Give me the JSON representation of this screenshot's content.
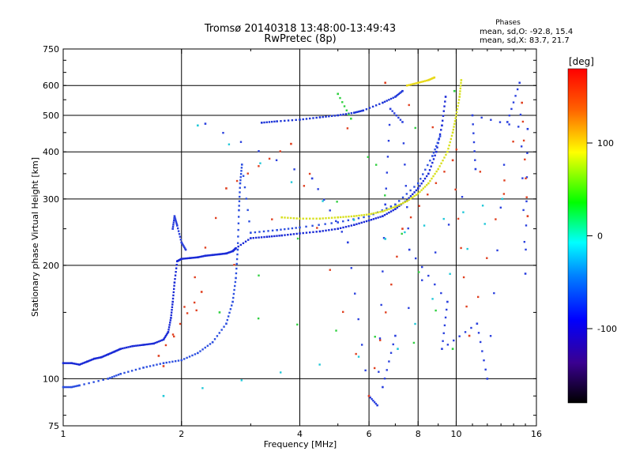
{
  "chart_data": {
    "type": "scatter",
    "title": "Tromsø 20140318 13:48:00-13:49:43",
    "subtitle": "RwPretec (8p)",
    "xlabel": "Frequency [MHz]",
    "ylabel": "Stationary phase Virtual Height [km]",
    "x_scale": "log",
    "y_scale": "log",
    "xlim": [
      1,
      16
    ],
    "ylim": [
      75,
      750
    ],
    "x_ticks": [
      1,
      2,
      4,
      6,
      8,
      10,
      16
    ],
    "y_ticks": [
      75,
      100,
      200,
      300,
      400,
      500,
      600,
      750
    ],
    "x_gridlines": [
      2,
      4,
      6,
      8,
      10
    ],
    "y_gridlines": [
      100,
      200,
      300,
      400,
      500,
      600
    ],
    "grid": true,
    "stats": {
      "heading": "Phases",
      "line1": "mean, sd,O: -92.8, 15.4",
      "line2": "mean, sd,X: 83.7, 21.7"
    },
    "colorbar": {
      "label": "[deg]",
      "ticks": [
        100,
        0,
        -100
      ],
      "range": [
        -180,
        180
      ],
      "colors": [
        "#ff0000",
        "#ff8000",
        "#ffff00",
        "#00ff00",
        "#00ffff",
        "#0000ff",
        "#4000a0",
        "#000000"
      ]
    },
    "series": [
      {
        "color": "#1a2ad6",
        "points": [
          [
            1.0,
            110
          ],
          [
            1.05,
            110
          ],
          [
            1.1,
            109
          ],
          [
            1.15,
            111
          ],
          [
            1.2,
            113
          ],
          [
            1.25,
            114
          ],
          [
            1.3,
            116
          ],
          [
            1.35,
            118
          ],
          [
            1.4,
            120
          ],
          [
            1.5,
            122
          ],
          [
            1.6,
            123
          ],
          [
            1.7,
            124
          ],
          [
            1.8,
            127
          ],
          [
            1.85,
            133
          ],
          [
            1.88,
            145
          ],
          [
            1.9,
            160
          ],
          [
            1.92,
            180
          ],
          [
            1.95,
            205
          ],
          [
            2.0,
            208
          ],
          [
            2.1,
            209
          ],
          [
            2.2,
            210
          ],
          [
            2.3,
            212
          ],
          [
            2.4,
            213
          ],
          [
            2.5,
            214
          ],
          [
            2.6,
            215
          ],
          [
            2.7,
            218
          ],
          [
            2.75,
            222
          ],
          [
            3.0,
            236
          ],
          [
            3.3,
            238
          ],
          [
            3.6,
            240
          ],
          [
            4.0,
            243
          ],
          [
            4.5,
            246
          ],
          [
            5.0,
            250
          ],
          [
            5.5,
            256
          ],
          [
            6.0,
            263
          ],
          [
            6.5,
            270
          ],
          [
            7.0,
            282
          ],
          [
            7.5,
            298
          ],
          [
            8.0,
            320
          ],
          [
            8.5,
            350
          ],
          [
            8.9,
            400
          ],
          [
            9.2,
            470
          ],
          [
            9.4,
            560
          ]
        ]
      },
      {
        "color": "#2c4fe0",
        "points": [
          [
            1.0,
            95
          ],
          [
            1.05,
            95
          ],
          [
            1.1,
            96
          ],
          [
            1.3,
            100
          ],
          [
            1.4,
            103
          ],
          [
            1.6,
            107
          ],
          [
            1.8,
            110
          ],
          [
            2.0,
            112
          ],
          [
            2.2,
            117
          ],
          [
            2.4,
            125
          ],
          [
            2.6,
            140
          ],
          [
            2.7,
            160
          ],
          [
            2.75,
            185
          ],
          [
            2.78,
            220
          ],
          [
            2.8,
            280
          ],
          [
            2.82,
            330
          ],
          [
            2.85,
            370
          ],
          [
            3.0,
            244
          ],
          [
            3.5,
            248
          ],
          [
            4.0,
            252
          ],
          [
            5.0,
            260
          ],
          [
            6.0,
            270
          ],
          [
            7.0,
            290
          ],
          [
            8.0,
            330
          ],
          [
            8.7,
            390
          ],
          [
            9.1,
            440
          ]
        ]
      },
      {
        "color": "#2a3fdc",
        "points": [
          [
            1.9,
            250
          ],
          [
            1.92,
            270
          ],
          [
            1.95,
            255
          ],
          [
            2.0,
            230
          ],
          [
            2.05,
            220
          ]
        ]
      },
      {
        "color": "#1e36d8",
        "points": [
          [
            3.2,
            478
          ],
          [
            3.5,
            482
          ],
          [
            4.0,
            487
          ],
          [
            4.5,
            494
          ],
          [
            5.0,
            500
          ],
          [
            5.5,
            508
          ],
          [
            5.8,
            515
          ],
          [
            6.5,
            540
          ],
          [
            7.0,
            560
          ],
          [
            7.3,
            580
          ]
        ]
      },
      {
        "color": "#d8e020",
        "points": [
          [
            3.6,
            268
          ],
          [
            4.0,
            266
          ],
          [
            4.5,
            266
          ],
          [
            5.0,
            268
          ],
          [
            5.5,
            270
          ],
          [
            6.0,
            273
          ],
          [
            6.5,
            278
          ],
          [
            7.0,
            286
          ],
          [
            7.5,
            296
          ],
          [
            8.0,
            310
          ],
          [
            8.5,
            330
          ],
          [
            9.0,
            360
          ],
          [
            9.5,
            400
          ],
          [
            9.8,
            450
          ],
          [
            10.0,
            500
          ],
          [
            10.2,
            560
          ],
          [
            10.3,
            620
          ]
        ]
      },
      {
        "color": "#e8d818",
        "points": [
          [
            7.5,
            600
          ],
          [
            8.0,
            610
          ],
          [
            8.5,
            620
          ],
          [
            8.8,
            630
          ]
        ]
      },
      {
        "color": "#2a40de",
        "points": [
          [
            2.3,
            475
          ],
          [
            4.3,
            340
          ],
          [
            5.3,
            230
          ],
          [
            6.0,
            90
          ],
          [
            6.3,
            85
          ],
          [
            6.6,
            290
          ],
          [
            6.8,
            520
          ],
          [
            7.3,
            480
          ],
          [
            7.6,
            220
          ],
          [
            9.5,
            160
          ],
          [
            9.2,
            120
          ],
          [
            11.3,
            140
          ],
          [
            12.0,
            100
          ],
          [
            13.5,
            480
          ],
          [
            14.5,
            610
          ],
          [
            15.0,
            190
          ],
          [
            15.2,
            460
          ],
          [
            11.0,
            500
          ],
          [
            11.2,
            360
          ],
          [
            7.0,
            130
          ],
          [
            6.5,
            95
          ]
        ]
      },
      {
        "color": "#e04020",
        "points": [
          [
            1.8,
            108
          ],
          [
            2.6,
            320
          ],
          [
            3.8,
            420
          ],
          [
            6.0,
            90
          ],
          [
            7.3,
            250
          ],
          [
            9.8,
            380
          ],
          [
            10.8,
            130
          ],
          [
            14.7,
            540
          ],
          [
            15.2,
            270
          ],
          [
            6.6,
            610
          ],
          [
            1.75,
            115
          ],
          [
            2.25,
            170
          ]
        ]
      },
      {
        "color": "#30d040",
        "points": [
          [
            5.0,
            570
          ],
          [
            5.4,
            490
          ],
          [
            9.8,
            120
          ],
          [
            2.5,
            150
          ],
          [
            9.9,
            580
          ]
        ]
      },
      {
        "color": "#20c8d8",
        "points": [
          [
            1.8,
            90
          ],
          [
            7.1,
            120
          ],
          [
            13.1,
            300
          ],
          [
            6.6,
            235
          ],
          [
            2.2,
            470
          ]
        ]
      }
    ]
  }
}
